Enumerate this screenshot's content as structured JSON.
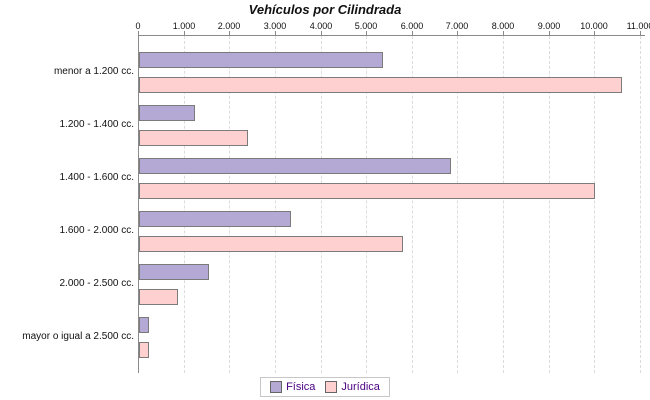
{
  "title": "Vehículos por Cilindrada",
  "chart_data": {
    "type": "bar",
    "orientation": "horizontal",
    "title": "Vehículos por Cilindrada",
    "categories": [
      "menor a 1.200 cc.",
      "1.200 - 1.400 cc.",
      "1.400 - 1.600 cc.",
      "1.600 - 2.000 cc.",
      "2.000 - 2.500 cc.",
      "mayor o igual a 2.500 cc."
    ],
    "series": [
      {
        "name": "Física",
        "color": "#b3a9d4",
        "border_color": "#7b7b7b",
        "values": [
          5300,
          1180,
          6800,
          3280,
          1480,
          180
        ]
      },
      {
        "name": "Jurídica",
        "color": "#fed0d0",
        "border_color": "#7b7b7b",
        "values": [
          10550,
          2350,
          9950,
          5740,
          800,
          170
        ]
      }
    ],
    "xlim": [
      0,
      11000
    ],
    "x_ticks": [
      0,
      1000,
      2000,
      3000,
      4000,
      5000,
      6000,
      7000,
      8000,
      9000,
      10000,
      11000
    ],
    "x_tick_labels": [
      "0",
      "1.000",
      "2.000",
      "3.000",
      "4.000",
      "5.000",
      "6.000",
      "7.000",
      "8.000",
      "9.000",
      "10.000",
      "11.000"
    ],
    "grid": "vertical-dashed",
    "axis_position": "top",
    "legend_position": "bottom-center"
  },
  "legend": {
    "items": [
      {
        "label": "Física",
        "color": "#b3a9d4"
      },
      {
        "label": "Jurídica",
        "color": "#fed0d0"
      }
    ]
  },
  "colors": {
    "background": "#ffffff",
    "axis_line": "#8a8a8a",
    "gridline": "#dcdcdc",
    "bar_border": "#7b7b7b",
    "legend_text": "#4b0082",
    "text": "#111111"
  }
}
